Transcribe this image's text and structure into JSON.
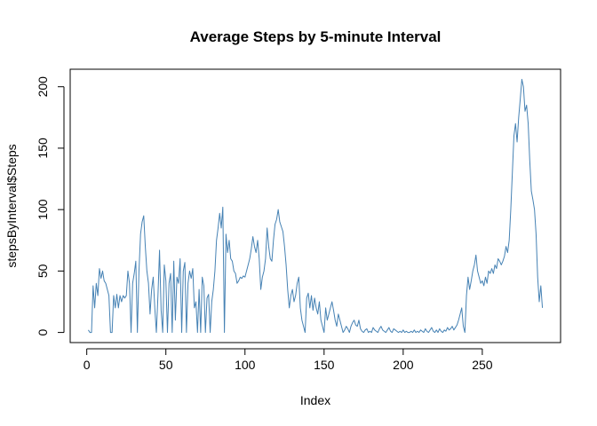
{
  "chart_data": {
    "type": "line",
    "title": "Average Steps by 5-minute Interval",
    "xlabel": "Index",
    "ylabel": "stepsByInterval$Steps",
    "xlim": [
      1,
      288
    ],
    "ylim": [
      0,
      206
    ],
    "x_ticks": [
      0,
      50,
      100,
      150,
      200,
      250
    ],
    "y_ticks": [
      0,
      50,
      100,
      150,
      200
    ],
    "grid": false,
    "legend": "none",
    "series": [
      {
        "color": "#4682b4",
        "points": [
          [
            1,
            2
          ],
          [
            2,
            0
          ],
          [
            3,
            0
          ],
          [
            4,
            38
          ],
          [
            5,
            20
          ],
          [
            6,
            40
          ],
          [
            7,
            30
          ],
          [
            8,
            52
          ],
          [
            9,
            44
          ],
          [
            10,
            50
          ],
          [
            11,
            42
          ],
          [
            12,
            40
          ],
          [
            13,
            35
          ],
          [
            14,
            30
          ],
          [
            15,
            0
          ],
          [
            16,
            0
          ],
          [
            17,
            30
          ],
          [
            18,
            20
          ],
          [
            19,
            31
          ],
          [
            20,
            20
          ],
          [
            21,
            30
          ],
          [
            22,
            25
          ],
          [
            23,
            30
          ],
          [
            24,
            28
          ],
          [
            25,
            30
          ],
          [
            26,
            50
          ],
          [
            27,
            40
          ],
          [
            28,
            0
          ],
          [
            29,
            40
          ],
          [
            30,
            48
          ],
          [
            31,
            58
          ],
          [
            32,
            0
          ],
          [
            33,
            50
          ],
          [
            34,
            80
          ],
          [
            35,
            90
          ],
          [
            36,
            95
          ],
          [
            37,
            70
          ],
          [
            38,
            50
          ],
          [
            39,
            40
          ],
          [
            40,
            15
          ],
          [
            41,
            35
          ],
          [
            42,
            45
          ],
          [
            43,
            20
          ],
          [
            44,
            0
          ],
          [
            45,
            30
          ],
          [
            46,
            67
          ],
          [
            47,
            18
          ],
          [
            48,
            0
          ],
          [
            49,
            55
          ],
          [
            50,
            42
          ],
          [
            51,
            0
          ],
          [
            52,
            40
          ],
          [
            53,
            48
          ],
          [
            54,
            0
          ],
          [
            55,
            58
          ],
          [
            56,
            10
          ],
          [
            57,
            45
          ],
          [
            58,
            40
          ],
          [
            59,
            60
          ],
          [
            60,
            0
          ],
          [
            61,
            50
          ],
          [
            62,
            57
          ],
          [
            63,
            0
          ],
          [
            64,
            40
          ],
          [
            65,
            50
          ],
          [
            66,
            44
          ],
          [
            67,
            52
          ],
          [
            68,
            20
          ],
          [
            69,
            25
          ],
          [
            70,
            0
          ],
          [
            71,
            35
          ],
          [
            72,
            0
          ],
          [
            73,
            45
          ],
          [
            74,
            38
          ],
          [
            75,
            0
          ],
          [
            76,
            28
          ],
          [
            77,
            31
          ],
          [
            78,
            0
          ],
          [
            79,
            25
          ],
          [
            80,
            35
          ],
          [
            81,
            50
          ],
          [
            82,
            75
          ],
          [
            83,
            85
          ],
          [
            84,
            97
          ],
          [
            85,
            85
          ],
          [
            86,
            102
          ],
          [
            87,
            0
          ],
          [
            88,
            80
          ],
          [
            89,
            65
          ],
          [
            90,
            75
          ],
          [
            91,
            60
          ],
          [
            92,
            58
          ],
          [
            93,
            50
          ],
          [
            94,
            48
          ],
          [
            95,
            40
          ],
          [
            96,
            42
          ],
          [
            97,
            45
          ],
          [
            98,
            44
          ],
          [
            99,
            46
          ],
          [
            100,
            45
          ],
          [
            101,
            50
          ],
          [
            102,
            55
          ],
          [
            103,
            60
          ],
          [
            104,
            68
          ],
          [
            105,
            78
          ],
          [
            106,
            70
          ],
          [
            107,
            65
          ],
          [
            108,
            75
          ],
          [
            109,
            60
          ],
          [
            110,
            35
          ],
          [
            111,
            45
          ],
          [
            112,
            50
          ],
          [
            113,
            60
          ],
          [
            114,
            85
          ],
          [
            115,
            70
          ],
          [
            116,
            60
          ],
          [
            117,
            58
          ],
          [
            118,
            75
          ],
          [
            119,
            88
          ],
          [
            120,
            92
          ],
          [
            121,
            100
          ],
          [
            122,
            90
          ],
          [
            123,
            86
          ],
          [
            124,
            82
          ],
          [
            125,
            70
          ],
          [
            126,
            55
          ],
          [
            127,
            35
          ],
          [
            128,
            20
          ],
          [
            129,
            30
          ],
          [
            130,
            35
          ],
          [
            131,
            25
          ],
          [
            132,
            30
          ],
          [
            133,
            40
          ],
          [
            134,
            45
          ],
          [
            135,
            20
          ],
          [
            136,
            10
          ],
          [
            137,
            5
          ],
          [
            138,
            0
          ],
          [
            139,
            28
          ],
          [
            140,
            32
          ],
          [
            141,
            20
          ],
          [
            142,
            30
          ],
          [
            143,
            18
          ],
          [
            144,
            28
          ],
          [
            145,
            20
          ],
          [
            146,
            15
          ],
          [
            147,
            25
          ],
          [
            148,
            10
          ],
          [
            149,
            5
          ],
          [
            150,
            0
          ],
          [
            151,
            20
          ],
          [
            152,
            10
          ],
          [
            153,
            15
          ],
          [
            154,
            20
          ],
          [
            155,
            25
          ],
          [
            156,
            18
          ],
          [
            157,
            10
          ],
          [
            158,
            5
          ],
          [
            159,
            15
          ],
          [
            160,
            10
          ],
          [
            161,
            5
          ],
          [
            162,
            0
          ],
          [
            163,
            2
          ],
          [
            164,
            5
          ],
          [
            165,
            3
          ],
          [
            166,
            0
          ],
          [
            167,
            5
          ],
          [
            168,
            8
          ],
          [
            169,
            10
          ],
          [
            170,
            6
          ],
          [
            171,
            5
          ],
          [
            172,
            10
          ],
          [
            173,
            3
          ],
          [
            174,
            1
          ],
          [
            175,
            0
          ],
          [
            176,
            2
          ],
          [
            177,
            3
          ],
          [
            178,
            0
          ],
          [
            179,
            1
          ],
          [
            180,
            0
          ],
          [
            181,
            4
          ],
          [
            182,
            2
          ],
          [
            183,
            1
          ],
          [
            184,
            0
          ],
          [
            185,
            3
          ],
          [
            186,
            5
          ],
          [
            187,
            2
          ],
          [
            188,
            1
          ],
          [
            189,
            0
          ],
          [
            190,
            2
          ],
          [
            191,
            4
          ],
          [
            192,
            1
          ],
          [
            193,
            0
          ],
          [
            194,
            3
          ],
          [
            195,
            2
          ],
          [
            196,
            1
          ],
          [
            197,
            0
          ],
          [
            198,
            1
          ],
          [
            199,
            0
          ],
          [
            200,
            2
          ],
          [
            201,
            0
          ],
          [
            202,
            1
          ],
          [
            203,
            0
          ],
          [
            204,
            0
          ],
          [
            205,
            1
          ],
          [
            206,
            0
          ],
          [
            207,
            2
          ],
          [
            208,
            0
          ],
          [
            209,
            1
          ],
          [
            210,
            0
          ],
          [
            211,
            2
          ],
          [
            212,
            1
          ],
          [
            213,
            0
          ],
          [
            214,
            3
          ],
          [
            215,
            1
          ],
          [
            216,
            0
          ],
          [
            217,
            2
          ],
          [
            218,
            4
          ],
          [
            219,
            1
          ],
          [
            220,
            0
          ],
          [
            221,
            2
          ],
          [
            222,
            0
          ],
          [
            223,
            3
          ],
          [
            224,
            1
          ],
          [
            225,
            0
          ],
          [
            226,
            2
          ],
          [
            227,
            1
          ],
          [
            228,
            4
          ],
          [
            229,
            2
          ],
          [
            230,
            3
          ],
          [
            231,
            5
          ],
          [
            232,
            2
          ],
          [
            233,
            4
          ],
          [
            234,
            6
          ],
          [
            235,
            10
          ],
          [
            236,
            15
          ],
          [
            237,
            20
          ],
          [
            238,
            5
          ],
          [
            239,
            0
          ],
          [
            240,
            30
          ],
          [
            241,
            45
          ],
          [
            242,
            35
          ],
          [
            243,
            42
          ],
          [
            244,
            50
          ],
          [
            245,
            55
          ],
          [
            246,
            63
          ],
          [
            247,
            50
          ],
          [
            248,
            45
          ],
          [
            249,
            40
          ],
          [
            250,
            42
          ],
          [
            251,
            38
          ],
          [
            252,
            45
          ],
          [
            253,
            40
          ],
          [
            254,
            50
          ],
          [
            255,
            48
          ],
          [
            256,
            52
          ],
          [
            257,
            48
          ],
          [
            258,
            55
          ],
          [
            259,
            52
          ],
          [
            260,
            60
          ],
          [
            261,
            58
          ],
          [
            262,
            55
          ],
          [
            263,
            58
          ],
          [
            264,
            62
          ],
          [
            265,
            70
          ],
          [
            266,
            65
          ],
          [
            267,
            75
          ],
          [
            268,
            100
          ],
          [
            269,
            130
          ],
          [
            270,
            160
          ],
          [
            271,
            170
          ],
          [
            272,
            155
          ],
          [
            273,
            175
          ],
          [
            274,
            190
          ],
          [
            275,
            206
          ],
          [
            276,
            200
          ],
          [
            277,
            180
          ],
          [
            278,
            185
          ],
          [
            279,
            170
          ],
          [
            280,
            140
          ],
          [
            281,
            115
          ],
          [
            282,
            108
          ],
          [
            283,
            100
          ],
          [
            284,
            80
          ],
          [
            285,
            45
          ],
          [
            286,
            25
          ],
          [
            287,
            38
          ],
          [
            288,
            20
          ]
        ]
      }
    ]
  }
}
